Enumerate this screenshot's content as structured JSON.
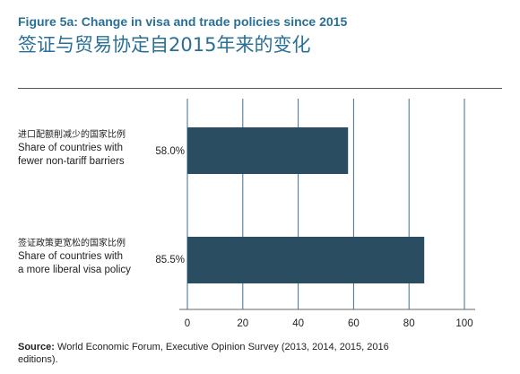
{
  "chart_data": {
    "type": "bar",
    "orientation": "horizontal",
    "title": "Figure 5a: Change in visa and trade policies since 2015",
    "subtitle": "签证与贸易协定自2015年来的变化",
    "categories": [
      {
        "label_zh": "进口配额削减少的国家比例",
        "label_en_line1": "Share of countries with",
        "label_en_line2": "fewer non-tariff barriers",
        "value_label": "58.0%"
      },
      {
        "label_zh": "签证政策更宽松的国家比例",
        "label_en_line1": "Share of countries with",
        "label_en_line2": "a more liberal visa policy",
        "value_label": "85.5%"
      }
    ],
    "values": [
      58.0,
      85.5
    ],
    "xlim": [
      0,
      100
    ],
    "xticks": [
      "0",
      "20",
      "40",
      "60",
      "80",
      "100"
    ],
    "grid": true,
    "bar_color": "#2a4d62"
  },
  "source": {
    "label": "Source:",
    "text": "World Economic Forum, Executive Opinion Survey (2013, 2014, 2015, 2016 editions)."
  }
}
